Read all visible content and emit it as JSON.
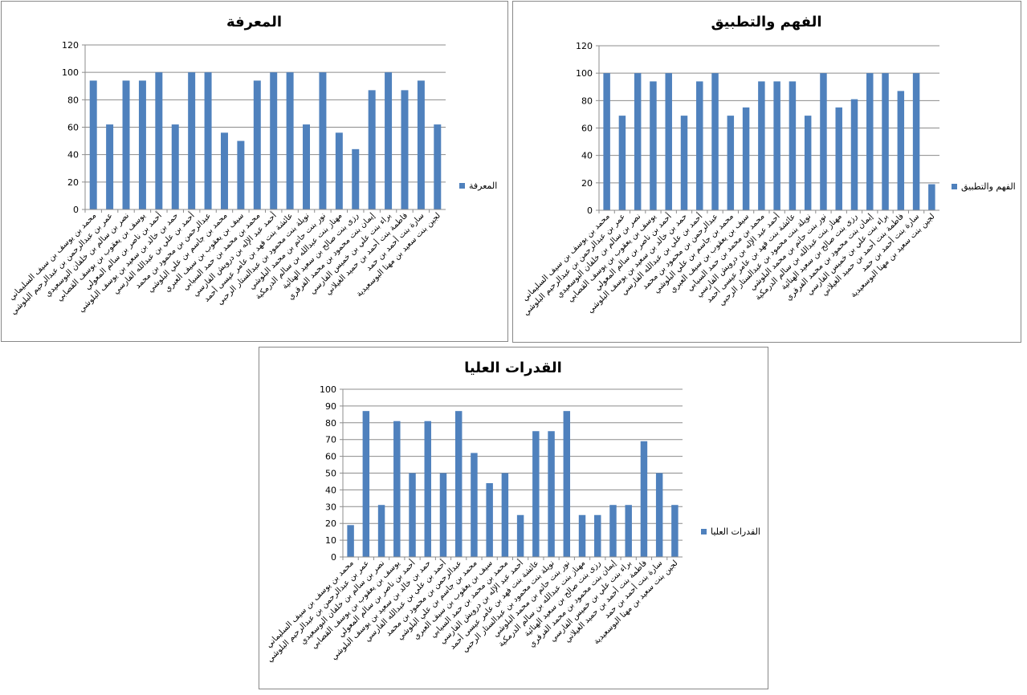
{
  "chart_data": [
    {
      "type": "bar",
      "title": "المعرفة",
      "categories": [
        "محمد بن يوسف بن سيف السليماني",
        "عمر بن عبدالرحمن بن عبدالرحيم البلوشي",
        "نصر بن سالم بن خلفان البوسعيدي",
        "يوسف بن يعقوب بن يوسف القصابي",
        "أحمد بن ناصر بن سالم المعولي",
        "حمد بن خالد بن سعيد بن يوسف البلوشي",
        "أحمد بن علي بن عبدالله الفارسي",
        "عبدالرحمن بن محمود بن محمد",
        "محمد بن جاسم بن علي البلوشي",
        "سيف بن يعقوب بن سيف العبري",
        "محمد بن محمد بن حمد السيابي",
        "أحمد عبد الإله بن درويش الفارسي",
        "عائشة بنت فهد بن عامر عيسى أحمد",
        "نويلة بنت محمود بن عبدالستار الرحبي",
        "نور بنت حاتم بن محمد البلوشي",
        "مهناز بنت عبدالله بن سالم الدرمكية",
        "رزى بنت صالح بن سعيد الهنائية",
        "إيمان بنت محمود بن محمد الفرقري",
        "براء بنت علي بن خميس الفارسي",
        "فاطمة بنت أحمد بن حميد الغيلاني",
        "سارة بنت أحمد بن حمد",
        "لجين بنت سعيد بن مهنا البوسعيدية"
      ],
      "series": [
        {
          "name": "المعرفة",
          "color": "#4f81bd",
          "values": [
            94,
            62,
            94,
            94,
            100,
            62,
            100,
            100,
            56,
            50,
            94,
            100,
            100,
            62,
            100,
            56,
            44,
            87,
            100,
            87,
            94,
            62
          ]
        }
      ],
      "ylim": [
        0,
        120
      ],
      "yticks": [
        0,
        20,
        40,
        60,
        80,
        100,
        120
      ],
      "grid": true,
      "legend": "right"
    },
    {
      "type": "bar",
      "title": "الفهم والتطبيق",
      "categories": [
        "محمد بن يوسف بن سيف السليماني",
        "عمر بن عبدالرحمن بن عبدالرحيم البلوشي",
        "نصر بن سالم بن خلفان البوسعيدي",
        "يوسف بن يعقوب بن يوسف القصابي",
        "أحمد بن ناصر بن سالم المعولي",
        "حمد بن خالد بن سعيد بن يوسف البلوشي",
        "أحمد بن علي بن عبدالله الفارسي",
        "عبدالرحمن بن محمود بن محمد",
        "محمد بن جاسم بن علي البلوشي",
        "سيف بن يعقوب بن سيف العبري",
        "محمد بن محمد بن حمد السيابي",
        "أحمد عبد الإله بن درويش الفارسي",
        "عائشة بنت فهد بن عامر عيسى أحمد",
        "نويلة بنت محمود بن عبدالستار الرحبي",
        "نور بنت حاتم بن محمد البلوشي",
        "مهناز بنت عبدالله بن سالم الدرمكية",
        "رزى بنت صالح بن سعيد الهنائية",
        "إيمان بنت محمود بن محمد الفرقري",
        "براء بنت علي بن خميس الفارسي",
        "فاطمة بنت أحمد بن حميد الغيلاني",
        "سارة بنت أحمد بن حمد",
        "لجين بنت سعيد بن مهنا البوسعيدية"
      ],
      "series": [
        {
          "name": "الفهم والتطبيق",
          "color": "#4f81bd",
          "values": [
            100,
            69,
            100,
            94,
            100,
            69,
            94,
            100,
            69,
            75,
            94,
            94,
            94,
            69,
            100,
            75,
            81,
            100,
            100,
            87,
            100,
            19
          ]
        }
      ],
      "ylim": [
        0,
        120
      ],
      "yticks": [
        0,
        20,
        40,
        60,
        80,
        100,
        120
      ],
      "grid": true,
      "legend": "right"
    },
    {
      "type": "bar",
      "title": "القدرات العليا",
      "categories": [
        "محمد بن يوسف بن سيف السليماني",
        "عمر بن عبدالرحمن بن عبدالرحيم البلوشي",
        "نصر بن سالم بن خلفان البوسعيدي",
        "يوسف بن يعقوب بن يوسف القصابي",
        "أحمد بن ناصر بن سالم المعولي",
        "حمد بن خالد بن سعيد بن يوسف البلوشي",
        "أحمد بن علي بن عبدالله الفارسي",
        "عبدالرحمن بن محمود بن محمد",
        "محمد بن جاسم بن علي البلوشي",
        "سيف بن يعقوب بن سيف العبري",
        "محمد بن محمد بن حمد السيابي",
        "أحمد عبد الإله بن درويش الفارسي",
        "عائشة بنت فهد بن عامر عيسى أحمد",
        "نويلة بنت محمود بن عبدالستار الرحبي",
        "نور بنت حاتم بن محمد البلوشي",
        "مهناز بنت عبدالله بن سالم الدرمكية",
        "رزى بنت صالح بن سعيد الهنائية",
        "إيمان بنت محمود بن محمد الفرقري",
        "براء بنت علي بن خميس الفارسي",
        "فاطمة بنت أحمد بن حميد الغيلاني",
        "سارة بنت أحمد بن حمد",
        "لجين بنت سعيد بن مهنا البوسعيدية"
      ],
      "series": [
        {
          "name": "القدرات العليا",
          "color": "#4f81bd",
          "values": [
            19,
            87,
            31,
            81,
            50,
            81,
            50,
            87,
            62,
            44,
            50,
            25,
            75,
            75,
            87,
            25,
            25,
            31,
            31,
            69,
            50,
            31
          ]
        }
      ],
      "ylim": [
        0,
        100
      ],
      "yticks": [
        0,
        10,
        20,
        30,
        40,
        50,
        60,
        70,
        80,
        90,
        100
      ],
      "grid": true,
      "legend": "right"
    }
  ]
}
